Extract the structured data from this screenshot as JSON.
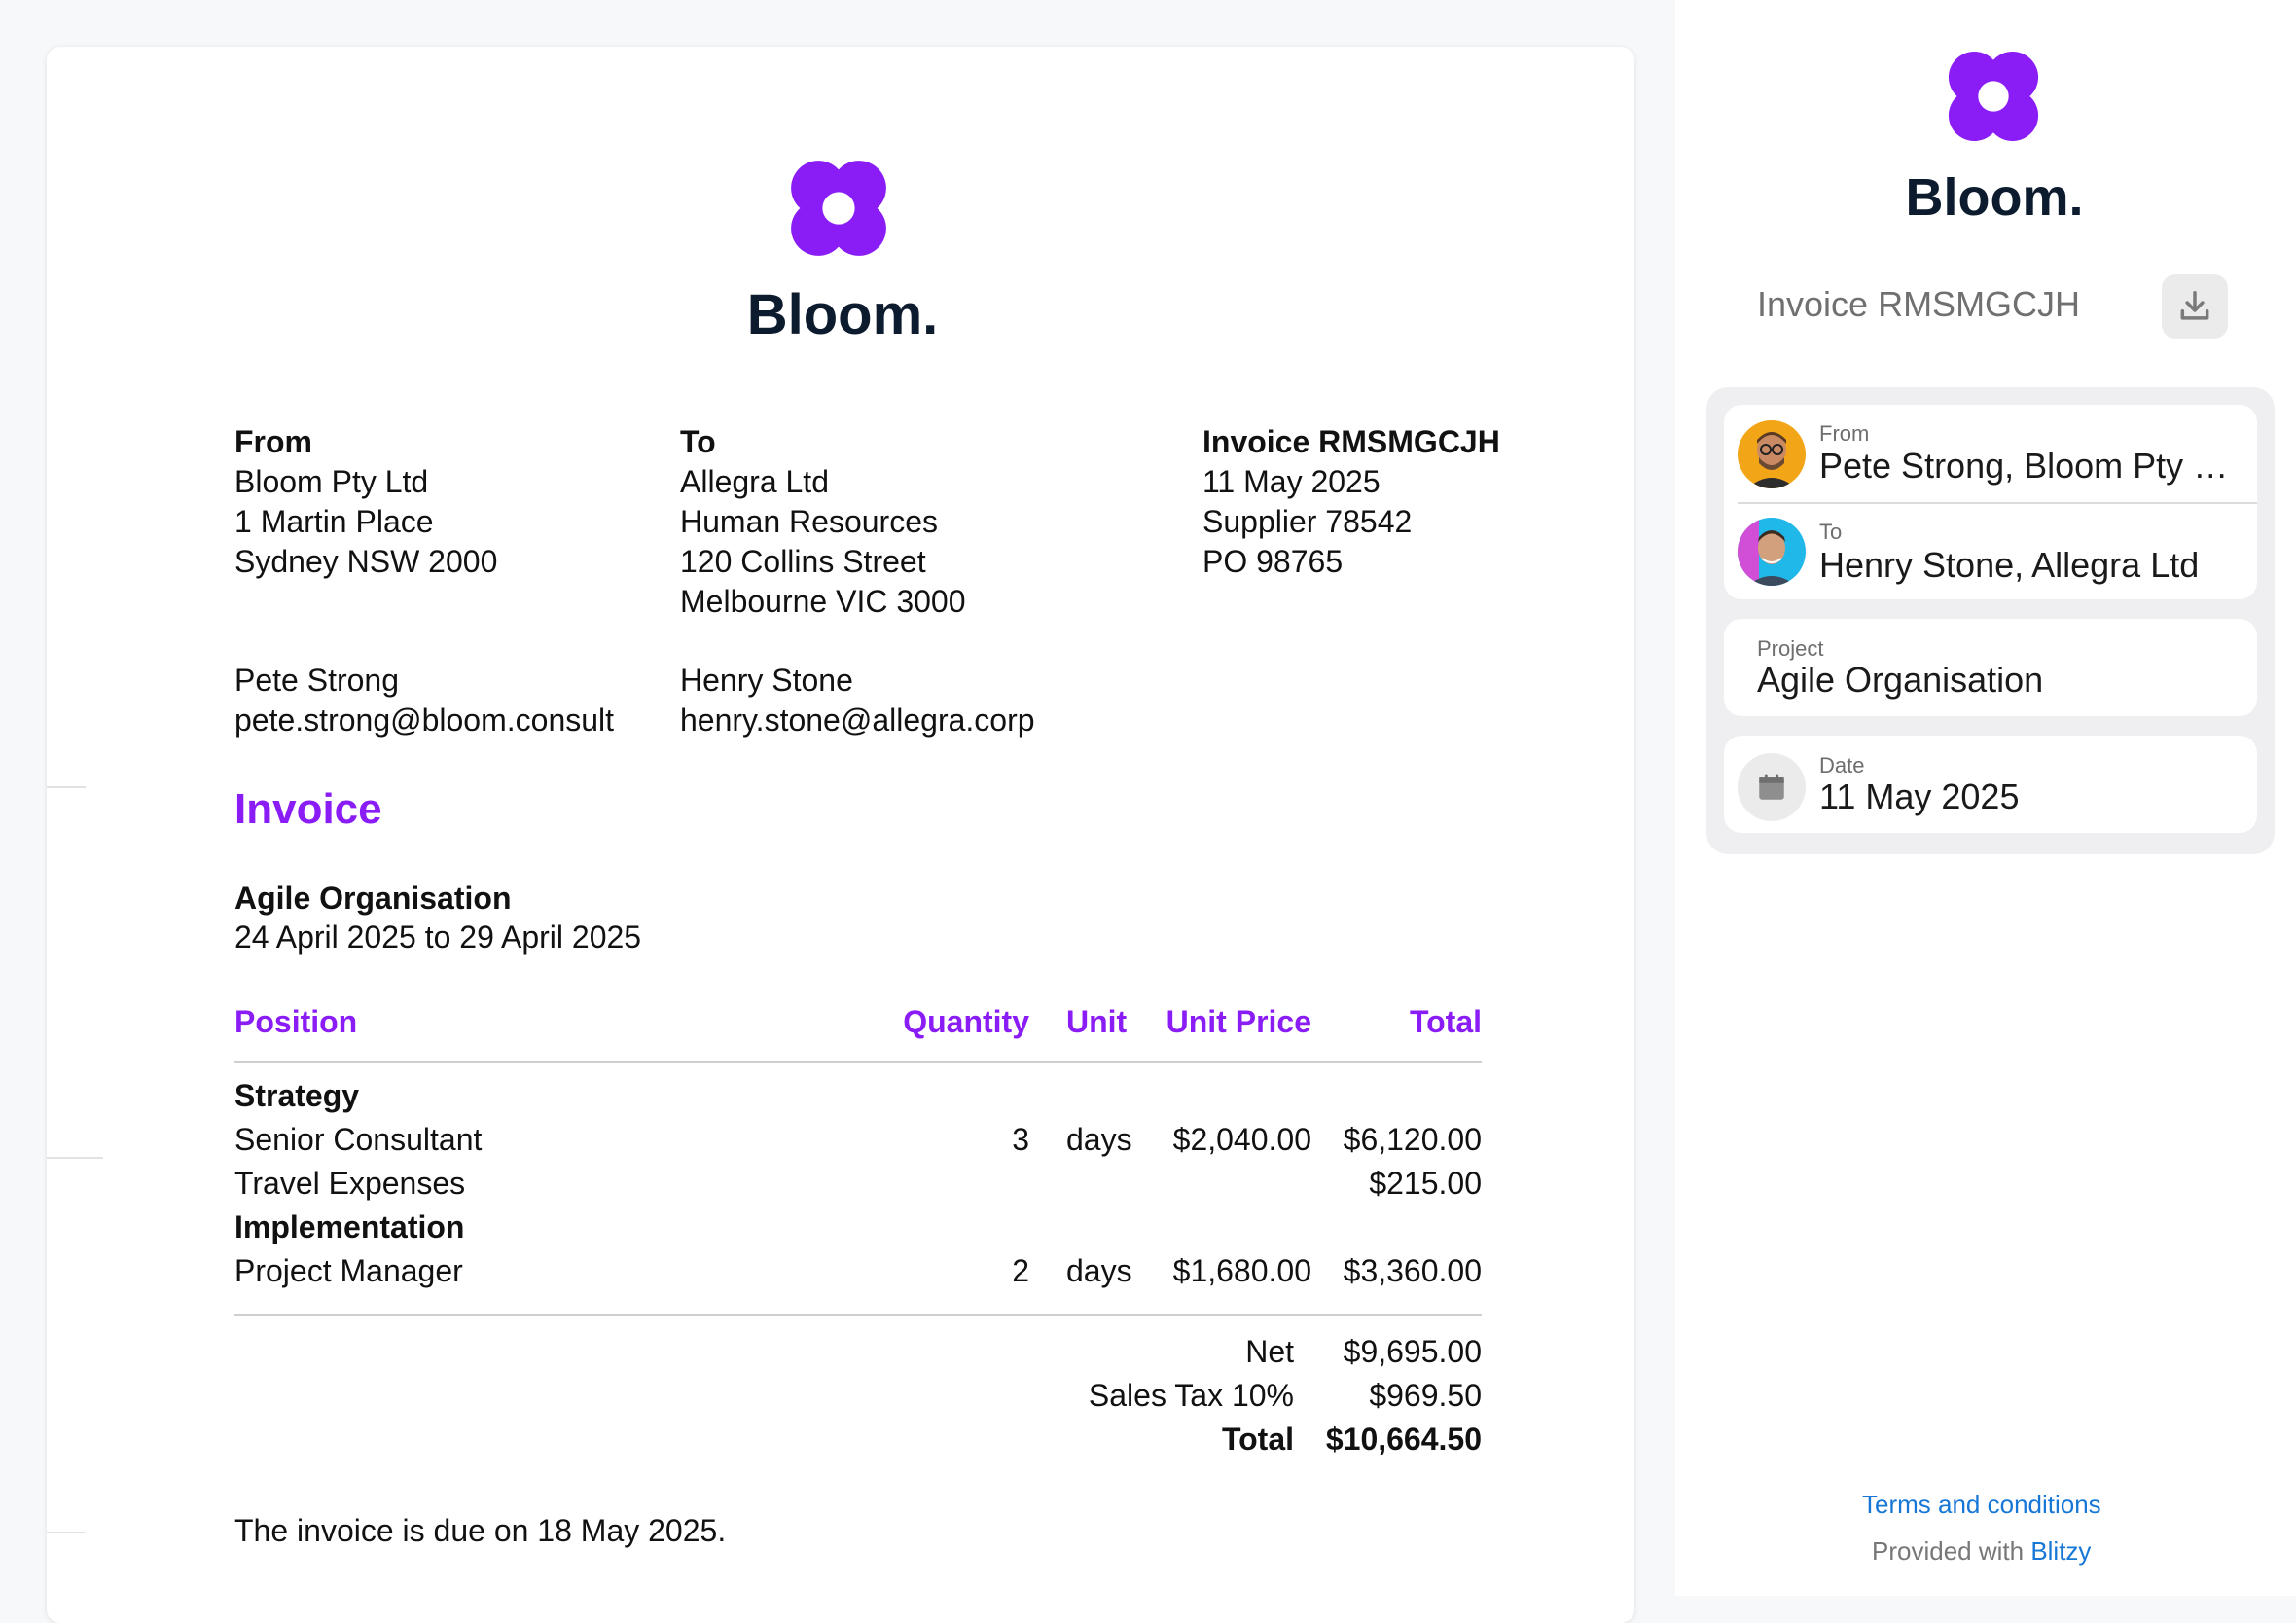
{
  "brand": {
    "name": "Bloom.",
    "color": "#8a1cf5",
    "logo_icon": "flower-logo-icon"
  },
  "invoice": {
    "from": {
      "label": "From",
      "lines": [
        "Bloom Pty Ltd",
        "1 Martin Place",
        "Sydney NSW 2000"
      ],
      "contact_name": "Pete Strong",
      "contact_email": "pete.strong@bloom.consult"
    },
    "to": {
      "label": "To",
      "lines": [
        "Allegra Ltd",
        "Human Resources",
        "120 Collins Street",
        "Melbourne VIC 3000"
      ],
      "contact_name": "Henry Stone",
      "contact_email": "henry.stone@allegra.corp"
    },
    "meta": {
      "title": "Invoice RMSMGCJH",
      "lines": [
        "11 May 2025",
        "Supplier 78542",
        "PO 98765"
      ]
    },
    "heading": "Invoice",
    "project": {
      "title": "Agile Organisation",
      "period": "24 April 2025 to 29 April 2025"
    },
    "columns": {
      "position": "Position",
      "quantity": "Quantity",
      "unit": "Unit",
      "unit_price": "Unit Price",
      "total": "Total"
    },
    "sections": [
      {
        "title": "Strategy",
        "items": [
          {
            "position": "Senior Consultant",
            "quantity": "3",
            "unit": "days",
            "unit_price": "$2,040.00",
            "total": "$6,120.00"
          },
          {
            "position": "Travel Expenses",
            "quantity": "",
            "unit": "",
            "unit_price": "",
            "total": "$215.00"
          }
        ]
      },
      {
        "title": "Implementation",
        "items": [
          {
            "position": "Project Manager",
            "quantity": "2",
            "unit": "days",
            "unit_price": "$1,680.00",
            "total": "$3,360.00"
          }
        ]
      }
    ],
    "totals": {
      "net_label": "Net",
      "net_value": "$9,695.00",
      "tax_label": "Sales Tax 10%",
      "tax_value": "$969.50",
      "total_label": "Total",
      "total_value": "$10,664.50"
    },
    "due_text": "The invoice is due on 18 May 2025."
  },
  "sidebar": {
    "invoice_title": "Invoice RMSMGCJH",
    "download_icon": "download-icon",
    "from_label": "From",
    "from_value": "Pete Strong, Bloom Pty Ltd",
    "to_label": "To",
    "to_value": "Henry Stone, Allegra Ltd",
    "project_label": "Project",
    "project_value": "Agile Organisation",
    "date_label": "Date",
    "date_value": "11 May 2025",
    "terms_link": "Terms and conditions",
    "provided_prefix": "Provided with ",
    "provided_link": "Blitzy"
  }
}
